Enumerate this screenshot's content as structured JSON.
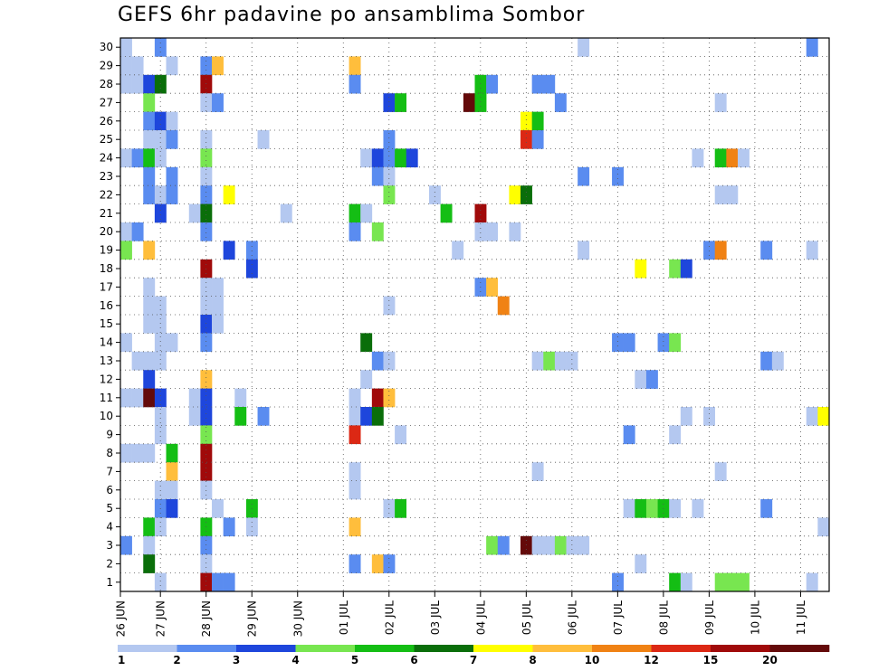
{
  "chart_data": {
    "type": "heatmap",
    "title": "GEFS 6hr padavine po ansamblima Sombor",
    "y_members": [
      1,
      2,
      3,
      4,
      5,
      6,
      7,
      8,
      9,
      10,
      11,
      12,
      13,
      14,
      15,
      16,
      17,
      18,
      19,
      20,
      21,
      22,
      23,
      24,
      25,
      26,
      27,
      28,
      29,
      30
    ],
    "x_dates": [
      "26 JUN",
      "27 JUN",
      "28 JUN",
      "29 JUN",
      "30 JUN",
      "01 JUL",
      "02 JUL",
      "03 JUL",
      "04 JUL",
      "05 JUL",
      "06 JUL",
      "07 JUL",
      "08 JUL",
      "09 JUL",
      "10 JUL",
      "11 JUL"
    ],
    "steps_per_day": 4,
    "x_range_steps": [
      0,
      61
    ],
    "grid": "dotted",
    "colorbar": {
      "labels": [
        "1",
        "2",
        "3",
        "4",
        "5",
        "6",
        "7",
        "8",
        "10",
        "12",
        "15",
        "20"
      ],
      "colors": [
        "#b4c8f0",
        "#5a8cf0",
        "#1e46dc",
        "#78e650",
        "#14be14",
        "#0a6e0a",
        "#ffff00",
        "#ffbe3c",
        "#f08214",
        "#dc2814",
        "#a00a0a",
        "#640a0a"
      ]
    },
    "cells": [
      [
        30,
        0,
        0
      ],
      [
        30,
        3,
        1
      ],
      [
        30,
        40,
        0
      ],
      [
        30,
        60,
        1
      ],
      [
        29,
        0,
        0
      ],
      [
        29,
        1,
        0
      ],
      [
        29,
        4,
        0
      ],
      [
        29,
        7,
        1
      ],
      [
        29,
        8,
        7
      ],
      [
        29,
        20,
        7
      ],
      [
        28,
        0,
        0
      ],
      [
        28,
        1,
        0
      ],
      [
        28,
        2,
        2
      ],
      [
        28,
        3,
        5
      ],
      [
        28,
        7,
        10
      ],
      [
        28,
        20,
        1
      ],
      [
        28,
        31,
        4
      ],
      [
        28,
        32,
        1
      ],
      [
        28,
        36,
        1
      ],
      [
        28,
        37,
        1
      ],
      [
        27,
        2,
        3
      ],
      [
        27,
        7,
        0
      ],
      [
        27,
        8,
        1
      ],
      [
        27,
        23,
        2
      ],
      [
        27,
        24,
        4
      ],
      [
        27,
        30,
        11
      ],
      [
        27,
        31,
        4
      ],
      [
        27,
        38,
        1
      ],
      [
        27,
        52,
        0
      ],
      [
        26,
        2,
        1
      ],
      [
        26,
        3,
        2
      ],
      [
        26,
        4,
        0
      ],
      [
        26,
        35,
        6
      ],
      [
        26,
        36,
        4
      ],
      [
        25,
        2,
        0
      ],
      [
        25,
        3,
        0
      ],
      [
        25,
        4,
        1
      ],
      [
        25,
        7,
        0
      ],
      [
        25,
        12,
        0
      ],
      [
        25,
        23,
        1
      ],
      [
        25,
        35,
        9
      ],
      [
        25,
        36,
        1
      ],
      [
        24,
        0,
        0
      ],
      [
        24,
        1,
        1
      ],
      [
        24,
        2,
        4
      ],
      [
        24,
        3,
        0
      ],
      [
        24,
        7,
        3
      ],
      [
        24,
        21,
        0
      ],
      [
        24,
        22,
        2
      ],
      [
        24,
        23,
        1
      ],
      [
        24,
        24,
        4
      ],
      [
        24,
        25,
        2
      ],
      [
        24,
        50,
        0
      ],
      [
        24,
        52,
        4
      ],
      [
        24,
        53,
        8
      ],
      [
        24,
        54,
        0
      ],
      [
        23,
        2,
        1
      ],
      [
        23,
        4,
        1
      ],
      [
        23,
        7,
        0
      ],
      [
        23,
        22,
        1
      ],
      [
        23,
        23,
        0
      ],
      [
        23,
        40,
        1
      ],
      [
        23,
        43,
        1
      ],
      [
        22,
        2,
        1
      ],
      [
        22,
        3,
        0
      ],
      [
        22,
        4,
        1
      ],
      [
        22,
        7,
        1
      ],
      [
        22,
        9,
        6
      ],
      [
        22,
        23,
        3
      ],
      [
        22,
        27,
        0
      ],
      [
        22,
        34,
        6
      ],
      [
        22,
        35,
        5
      ],
      [
        22,
        52,
        0
      ],
      [
        22,
        53,
        0
      ],
      [
        21,
        3,
        2
      ],
      [
        21,
        6,
        0
      ],
      [
        21,
        7,
        5
      ],
      [
        21,
        14,
        0
      ],
      [
        21,
        20,
        4
      ],
      [
        21,
        21,
        0
      ],
      [
        21,
        28,
        4
      ],
      [
        21,
        31,
        10
      ],
      [
        20,
        0,
        0
      ],
      [
        20,
        1,
        1
      ],
      [
        20,
        7,
        1
      ],
      [
        20,
        20,
        1
      ],
      [
        20,
        22,
        3
      ],
      [
        20,
        31,
        0
      ],
      [
        20,
        32,
        0
      ],
      [
        20,
        34,
        0
      ],
      [
        19,
        0,
        3
      ],
      [
        19,
        2,
        7
      ],
      [
        19,
        9,
        2
      ],
      [
        19,
        11,
        1
      ],
      [
        19,
        29,
        0
      ],
      [
        19,
        40,
        0
      ],
      [
        19,
        51,
        1
      ],
      [
        19,
        52,
        8
      ],
      [
        19,
        56,
        1
      ],
      [
        19,
        60,
        0
      ],
      [
        18,
        7,
        10
      ],
      [
        18,
        11,
        2
      ],
      [
        18,
        45,
        6
      ],
      [
        18,
        48,
        3
      ],
      [
        18,
        49,
        2
      ],
      [
        17,
        2,
        0
      ],
      [
        17,
        7,
        0
      ],
      [
        17,
        8,
        0
      ],
      [
        17,
        31,
        1
      ],
      [
        17,
        32,
        7
      ],
      [
        16,
        2,
        0
      ],
      [
        16,
        3,
        0
      ],
      [
        16,
        7,
        0
      ],
      [
        16,
        8,
        0
      ],
      [
        16,
        23,
        0
      ],
      [
        16,
        33,
        8
      ],
      [
        15,
        2,
        0
      ],
      [
        15,
        3,
        0
      ],
      [
        15,
        7,
        2
      ],
      [
        15,
        8,
        0
      ],
      [
        14,
        0,
        0
      ],
      [
        14,
        3,
        0
      ],
      [
        14,
        4,
        0
      ],
      [
        14,
        7,
        1
      ],
      [
        14,
        21,
        5
      ],
      [
        14,
        43,
        1
      ],
      [
        14,
        44,
        1
      ],
      [
        14,
        47,
        1
      ],
      [
        14,
        48,
        3
      ],
      [
        13,
        1,
        0
      ],
      [
        13,
        2,
        0
      ],
      [
        13,
        3,
        0
      ],
      [
        13,
        22,
        1
      ],
      [
        13,
        23,
        0
      ],
      [
        13,
        36,
        0
      ],
      [
        13,
        37,
        3
      ],
      [
        13,
        38,
        0
      ],
      [
        13,
        39,
        0
      ],
      [
        13,
        56,
        1
      ],
      [
        13,
        57,
        0
      ],
      [
        12,
        2,
        2
      ],
      [
        12,
        7,
        7
      ],
      [
        12,
        21,
        0
      ],
      [
        12,
        45,
        0
      ],
      [
        12,
        46,
        1
      ],
      [
        11,
        0,
        0
      ],
      [
        11,
        1,
        0
      ],
      [
        11,
        2,
        11
      ],
      [
        11,
        3,
        2
      ],
      [
        11,
        6,
        0
      ],
      [
        11,
        7,
        2
      ],
      [
        11,
        10,
        0
      ],
      [
        11,
        20,
        0
      ],
      [
        11,
        22,
        10
      ],
      [
        11,
        23,
        7
      ],
      [
        10,
        3,
        0
      ],
      [
        10,
        6,
        0
      ],
      [
        10,
        7,
        2
      ],
      [
        10,
        10,
        4
      ],
      [
        10,
        12,
        1
      ],
      [
        10,
        20,
        0
      ],
      [
        10,
        21,
        2
      ],
      [
        10,
        22,
        5
      ],
      [
        10,
        49,
        0
      ],
      [
        10,
        51,
        0
      ],
      [
        10,
        60,
        0
      ],
      [
        10,
        61,
        6
      ],
      [
        9,
        3,
        0
      ],
      [
        9,
        7,
        3
      ],
      [
        9,
        20,
        9
      ],
      [
        9,
        24,
        0
      ],
      [
        9,
        44,
        1
      ],
      [
        9,
        48,
        0
      ],
      [
        8,
        0,
        0
      ],
      [
        8,
        1,
        0
      ],
      [
        8,
        2,
        0
      ],
      [
        8,
        4,
        4
      ],
      [
        8,
        7,
        10
      ],
      [
        7,
        4,
        7
      ],
      [
        7,
        7,
        10
      ],
      [
        7,
        20,
        0
      ],
      [
        7,
        36,
        0
      ],
      [
        7,
        52,
        0
      ],
      [
        6,
        3,
        0
      ],
      [
        6,
        4,
        0
      ],
      [
        6,
        7,
        0
      ],
      [
        6,
        20,
        0
      ],
      [
        5,
        3,
        1
      ],
      [
        5,
        4,
        2
      ],
      [
        5,
        8,
        0
      ],
      [
        5,
        11,
        4
      ],
      [
        5,
        23,
        0
      ],
      [
        5,
        24,
        4
      ],
      [
        5,
        44,
        0
      ],
      [
        5,
        45,
        4
      ],
      [
        5,
        46,
        3
      ],
      [
        5,
        47,
        4
      ],
      [
        5,
        48,
        0
      ],
      [
        5,
        50,
        0
      ],
      [
        5,
        56,
        1
      ],
      [
        4,
        2,
        4
      ],
      [
        4,
        3,
        0
      ],
      [
        4,
        7,
        4
      ],
      [
        4,
        9,
        1
      ],
      [
        4,
        11,
        0
      ],
      [
        4,
        20,
        7
      ],
      [
        4,
        61,
        0
      ],
      [
        3,
        0,
        1
      ],
      [
        3,
        2,
        0
      ],
      [
        3,
        7,
        1
      ],
      [
        3,
        32,
        3
      ],
      [
        3,
        33,
        1
      ],
      [
        3,
        35,
        11
      ],
      [
        3,
        36,
        0
      ],
      [
        3,
        37,
        0
      ],
      [
        3,
        38,
        3
      ],
      [
        3,
        39,
        0
      ],
      [
        3,
        40,
        0
      ],
      [
        2,
        2,
        5
      ],
      [
        2,
        7,
        0
      ],
      [
        2,
        20,
        1
      ],
      [
        2,
        22,
        7
      ],
      [
        2,
        23,
        1
      ],
      [
        2,
        45,
        0
      ],
      [
        1,
        3,
        0
      ],
      [
        1,
        7,
        10
      ],
      [
        1,
        8,
        1
      ],
      [
        1,
        9,
        1
      ],
      [
        1,
        43,
        1
      ],
      [
        1,
        48,
        4
      ],
      [
        1,
        49,
        0
      ],
      [
        1,
        52,
        3
      ],
      [
        1,
        53,
        3
      ],
      [
        1,
        54,
        3
      ],
      [
        1,
        60,
        0
      ]
    ]
  }
}
